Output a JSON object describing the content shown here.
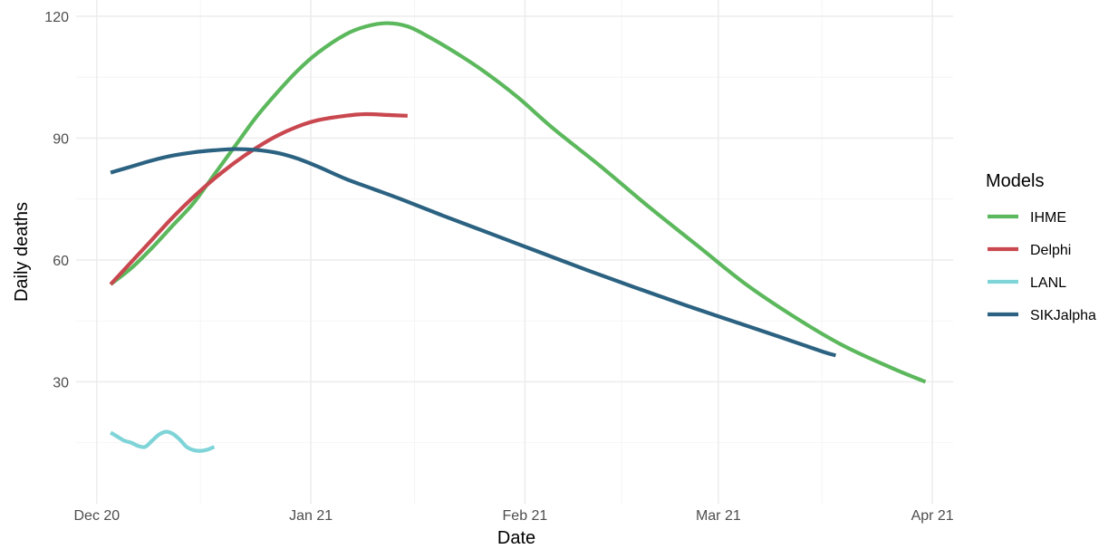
{
  "chart_data": {
    "type": "line",
    "xlabel": "Date",
    "ylabel": "Daily deaths",
    "x_type": "date",
    "xlim": [
      "2020-11-28",
      "2021-04-04"
    ],
    "ylim": [
      0,
      124
    ],
    "x_ticks": [
      {
        "date": "2020-12-01",
        "label": "Dec 20"
      },
      {
        "date": "2021-01-01",
        "label": "Jan 21"
      },
      {
        "date": "2021-02-01",
        "label": "Feb 21"
      },
      {
        "date": "2021-03-01",
        "label": "Mar 21"
      },
      {
        "date": "2021-04-01",
        "label": "Apr 21"
      }
    ],
    "x_minor_ticks": [
      "2020-12-16",
      "2021-01-16",
      "2021-02-15",
      "2021-03-16"
    ],
    "y_ticks": [
      30,
      60,
      90,
      120
    ],
    "y_minor_ticks": [
      15,
      45,
      75,
      105
    ],
    "grid": true,
    "legend": {
      "title": "Models",
      "position": "right"
    },
    "series": [
      {
        "name": "IHME",
        "color": "#5cb85c",
        "points": [
          [
            "2020-12-03",
            54
          ],
          [
            "2020-12-06",
            58
          ],
          [
            "2020-12-09",
            63
          ],
          [
            "2020-12-12",
            68.5
          ],
          [
            "2020-12-15",
            74
          ],
          [
            "2020-12-18",
            81
          ],
          [
            "2020-12-21",
            88
          ],
          [
            "2020-12-24",
            95
          ],
          [
            "2020-12-27",
            101
          ],
          [
            "2020-12-30",
            106.5
          ],
          [
            "2021-01-02",
            111
          ],
          [
            "2021-01-06",
            115.5
          ],
          [
            "2021-01-09",
            117.5
          ],
          [
            "2021-01-12",
            118.3
          ],
          [
            "2021-01-15",
            117.5
          ],
          [
            "2021-01-18",
            115
          ],
          [
            "2021-01-22",
            111
          ],
          [
            "2021-01-26",
            106.5
          ],
          [
            "2021-01-31",
            100
          ],
          [
            "2021-02-05",
            92.5
          ],
          [
            "2021-02-12",
            83
          ],
          [
            "2021-02-19",
            73
          ],
          [
            "2021-02-26",
            63.5
          ],
          [
            "2021-03-05",
            54
          ],
          [
            "2021-03-12",
            46
          ],
          [
            "2021-03-19",
            39
          ],
          [
            "2021-03-26",
            33.5
          ],
          [
            "2021-03-31",
            30
          ]
        ]
      },
      {
        "name": "Delphi",
        "color": "#c9474f",
        "points": [
          [
            "2020-12-03",
            54
          ],
          [
            "2020-12-06",
            59.5
          ],
          [
            "2020-12-09",
            65
          ],
          [
            "2020-12-12",
            70.5
          ],
          [
            "2020-12-15",
            75.5
          ],
          [
            "2020-12-18",
            80
          ],
          [
            "2020-12-21",
            84
          ],
          [
            "2020-12-24",
            87.5
          ],
          [
            "2020-12-27",
            90.5
          ],
          [
            "2020-12-30",
            92.8
          ],
          [
            "2021-01-02",
            94.4
          ],
          [
            "2021-01-06",
            95.5
          ],
          [
            "2021-01-09",
            95.9
          ],
          [
            "2021-01-12",
            95.7
          ],
          [
            "2021-01-15",
            95.5
          ]
        ]
      },
      {
        "name": "LANL",
        "color": "#7fd4d8",
        "points": [
          [
            "2020-12-03",
            17.5
          ],
          [
            "2020-12-04",
            16.5
          ],
          [
            "2020-12-05",
            15.5
          ],
          [
            "2020-12-06",
            15
          ],
          [
            "2020-12-07",
            14.2
          ],
          [
            "2020-12-08",
            14
          ],
          [
            "2020-12-09",
            15.5
          ],
          [
            "2020-12-10",
            17
          ],
          [
            "2020-12-11",
            17.7
          ],
          [
            "2020-12-12",
            17.2
          ],
          [
            "2020-12-13",
            15.8
          ],
          [
            "2020-12-14",
            14
          ],
          [
            "2020-12-15",
            13.2
          ],
          [
            "2020-12-16",
            13
          ],
          [
            "2020-12-17",
            13.3
          ],
          [
            "2020-12-18",
            14
          ]
        ]
      },
      {
        "name": "SIKJalpha",
        "color": "#2b6281",
        "points": [
          [
            "2020-12-03",
            81.5
          ],
          [
            "2020-12-06",
            83
          ],
          [
            "2020-12-09",
            84.5
          ],
          [
            "2020-12-12",
            85.7
          ],
          [
            "2020-12-15",
            86.5
          ],
          [
            "2020-12-18",
            87
          ],
          [
            "2020-12-21",
            87.3
          ],
          [
            "2020-12-24",
            87.1
          ],
          [
            "2020-12-27",
            86.4
          ],
          [
            "2020-12-30",
            85
          ],
          [
            "2021-01-02",
            83
          ],
          [
            "2021-01-06",
            80
          ],
          [
            "2021-01-10",
            77.5
          ],
          [
            "2021-01-14",
            75
          ],
          [
            "2021-01-20",
            71
          ],
          [
            "2021-01-27",
            66.5
          ],
          [
            "2021-02-03",
            62
          ],
          [
            "2021-02-10",
            57.5
          ],
          [
            "2021-02-17",
            53.2
          ],
          [
            "2021-02-24",
            49
          ],
          [
            "2021-03-03",
            45
          ],
          [
            "2021-03-10",
            41
          ],
          [
            "2021-03-16",
            37.5
          ],
          [
            "2021-03-18",
            36.5
          ]
        ]
      }
    ]
  }
}
